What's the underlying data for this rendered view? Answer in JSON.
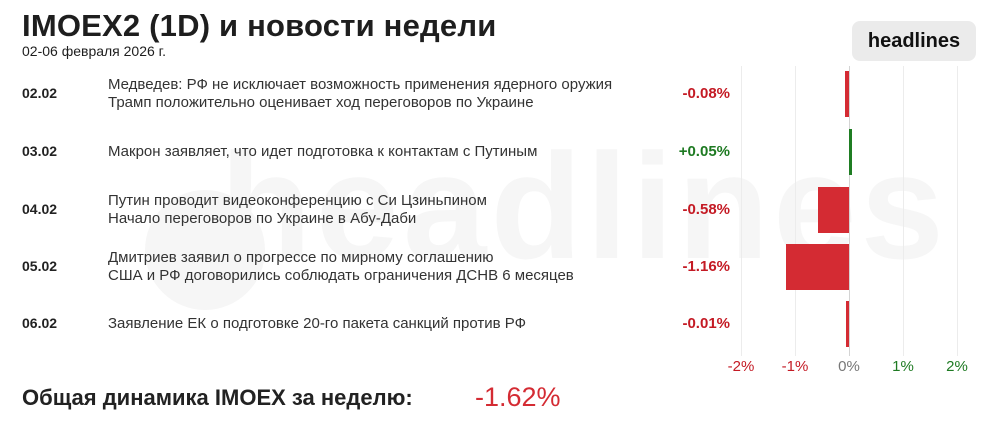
{
  "header": {
    "title": "IMOEX2 (1D) и новости недели",
    "subtitle": "02-06 февраля 2026 г.",
    "brand": "headlines"
  },
  "watermark": "headlines",
  "chart_data": {
    "type": "bar",
    "orientation": "horizontal",
    "categories": [
      "02.02",
      "03.02",
      "04.02",
      "05.02",
      "06.02"
    ],
    "values": [
      -0.08,
      0.05,
      -0.58,
      -1.16,
      -0.01
    ],
    "value_labels": [
      "-0.08%",
      "+0.05%",
      "-0.58%",
      "-1.16%",
      "-0.01%"
    ],
    "xlim": [
      -2,
      2
    ],
    "x_ticks": [
      -2,
      -1,
      0,
      1,
      2
    ],
    "x_tick_labels": [
      "-2%",
      "-1%",
      "0%",
      "1%",
      "2%"
    ],
    "colors": {
      "negative": "#d42b33",
      "positive": "#1f7d23"
    },
    "grid": true,
    "legend": "none"
  },
  "rows": [
    {
      "date": "02.02",
      "news": [
        "Медведев: РФ не исключает возможность применения ядерного оружия",
        "Трамп положительно оценивает ход переговоров по Украине"
      ],
      "pct": "-0.08%"
    },
    {
      "date": "03.02",
      "news": [
        "Макрон заявляет, что идет подготовка к контактам с Путиным"
      ],
      "pct": "+0.05%"
    },
    {
      "date": "04.02",
      "news": [
        "Путин проводит видеоконференцию с Си Цзиньпином",
        "Начало переговоров по Украине в Абу-Даби"
      ],
      "pct": "-0.58%"
    },
    {
      "date": "05.02",
      "news": [
        "Дмитриев заявил о прогрессе по мирному соглашению",
        "США и РФ договорились соблюдать ограничения ДСНВ 6 месяцев"
      ],
      "pct": "-1.16%"
    },
    {
      "date": "06.02",
      "news": [
        "Заявление ЕК о подготовке 20-го пакета санкций против РФ"
      ],
      "pct": "-0.01%"
    }
  ],
  "footer": {
    "label": "Общая динамика IMOEX за неделю:",
    "value": "-1.62%"
  }
}
